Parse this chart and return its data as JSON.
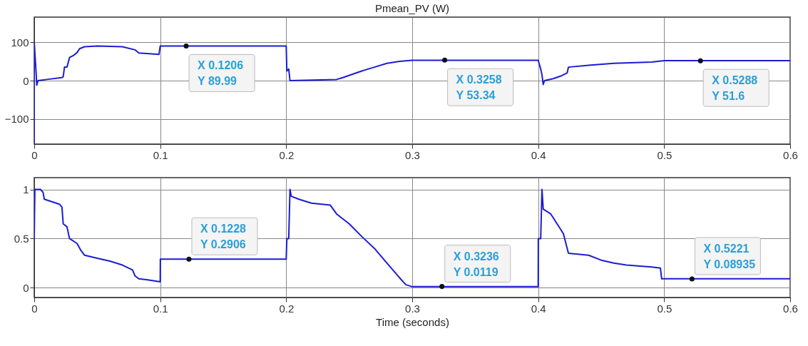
{
  "chart_data": [
    {
      "type": "line",
      "title": "Pmean_PV (W)",
      "xlim": [
        0,
        0.6
      ],
      "xticks": [
        0,
        0.1,
        0.2,
        0.3,
        0.4,
        0.5,
        0.6
      ],
      "ylim": [
        -165,
        165
      ],
      "yticks": [
        -100,
        0,
        100
      ],
      "grid": true,
      "marker": "none",
      "line_style": "solid",
      "series": [
        {
          "color": "#1c1cd6",
          "x": [
            0,
            0,
            0.0015,
            0.002,
            0.003,
            0.01,
            0.022,
            0.023,
            0.024,
            0.026,
            0.028,
            0.031,
            0.034,
            0.036,
            0.04,
            0.05,
            0.07,
            0.08,
            0.083,
            0.099,
            0.1,
            0.2,
            0.2005,
            0.202,
            0.203,
            0.24,
            0.245,
            0.26,
            0.27,
            0.28,
            0.29,
            0.3,
            0.4,
            0.402,
            0.403,
            0.404,
            0.405,
            0.412,
            0.418,
            0.423,
            0.424,
            0.44,
            0.46,
            0.49,
            0.5,
            0.6
          ],
          "values": [
            -160,
            100,
            20,
            -12,
            0,
            3,
            8,
            10,
            35,
            35,
            60,
            65,
            73,
            83,
            88,
            90,
            88,
            80,
            72,
            68,
            90,
            90,
            25,
            30,
            0,
            3,
            8,
            25,
            35,
            45,
            50,
            53,
            53,
            30,
            15,
            -10,
            0,
            5,
            12,
            20,
            35,
            40,
            45,
            48,
            52,
            52
          ]
        }
      ],
      "annotations": [
        {
          "text": "X 0.1206\nY 89.99",
          "x": 0.1206,
          "y": 89.99
        },
        {
          "text": "X 0.3258\nY 53.34",
          "x": 0.3258,
          "y": 53.34
        },
        {
          "text": "X 0.5288\nY 51.6",
          "x": 0.5288,
          "y": 51.6
        }
      ]
    },
    {
      "type": "line",
      "xlabel": "Time (seconds)",
      "xlim": [
        0,
        0.6
      ],
      "xticks": [
        0,
        0.1,
        0.2,
        0.3,
        0.4,
        0.5,
        0.6
      ],
      "ylim": [
        -0.1,
        1.12
      ],
      "yticks": [
        0,
        0.5,
        1
      ],
      "grid": true,
      "marker": "none",
      "line_style": "solid",
      "series": [
        {
          "color": "#1c1cd6",
          "x": [
            0,
            0.0005,
            0.005,
            0.007,
            0.008,
            0.02,
            0.022,
            0.023,
            0.026,
            0.028,
            0.034,
            0.037,
            0.04,
            0.05,
            0.06,
            0.07,
            0.078,
            0.08,
            0.083,
            0.09,
            0.1,
            0.1001,
            0.2,
            0.2005,
            0.202,
            0.203,
            0.204,
            0.21,
            0.22,
            0.235,
            0.24,
            0.25,
            0.26,
            0.27,
            0.28,
            0.29,
            0.295,
            0.3,
            0.4,
            0.4001,
            0.402,
            0.403,
            0.404,
            0.41,
            0.415,
            0.42,
            0.424,
            0.44,
            0.45,
            0.46,
            0.47,
            0.49,
            0.497,
            0.498,
            0.6
          ],
          "values": [
            0.5,
            1,
            1,
            0.97,
            0.9,
            0.85,
            0.82,
            0.65,
            0.62,
            0.5,
            0.45,
            0.38,
            0.33,
            0.3,
            0.27,
            0.23,
            0.18,
            0.12,
            0.09,
            0.08,
            0.06,
            0.29,
            0.29,
            0.5,
            0.5,
            1,
            0.93,
            0.9,
            0.86,
            0.84,
            0.75,
            0.65,
            0.52,
            0.4,
            0.25,
            0.1,
            0.03,
            0.01,
            0.01,
            0.5,
            0.5,
            1,
            0.8,
            0.75,
            0.65,
            0.55,
            0.35,
            0.33,
            0.28,
            0.25,
            0.23,
            0.21,
            0.2,
            0.09,
            0.09
          ]
        }
      ],
      "annotations": [
        {
          "text": "X 0.1228\nY 0.2906",
          "x": 0.1228,
          "y": 0.2906
        },
        {
          "text": "X 0.3236\nY 0.0119",
          "x": 0.3236,
          "y": 0.0119
        },
        {
          "text": "X 0.5221\nY 0.08935",
          "x": 0.5221,
          "y": 0.08935
        }
      ]
    }
  ]
}
